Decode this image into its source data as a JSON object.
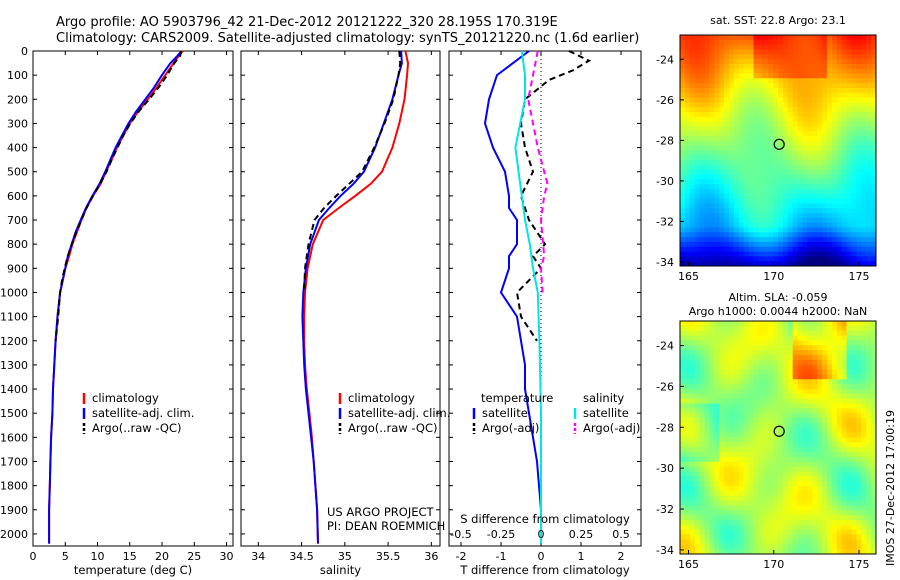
{
  "header": {
    "line1": "Argo profile: AO 5903796_42 21-Dec-2012 20121222_320 28.195S 170.319E",
    "line2": "Climatology: CARS2009. Satellite-adjusted climatology: synTS_20121220.nc (1.6d earlier)"
  },
  "side_note": "IMOS 27-Dec-2012 17:00:19",
  "credit": [
    "US ARGO PROJECT",
    "PI: DEAN ROEMMICH"
  ],
  "colors": {
    "climatology": "#ff0000",
    "satellite": "#0000ff",
    "argo": "#000000",
    "t_sat": "#0000ff",
    "s_sat": "#00e5e5",
    "s_argo": "#ff00ff"
  },
  "chart_data": [
    {
      "type": "line",
      "id": "temperature",
      "xlabel": "temperature (deg C)",
      "xlim": [
        0,
        31
      ],
      "ylim": [
        2050,
        0
      ],
      "xticks": [
        0,
        5,
        10,
        15,
        20,
        25,
        30
      ],
      "yticks": [
        0,
        100,
        200,
        300,
        400,
        500,
        600,
        700,
        800,
        900,
        1000,
        1100,
        1200,
        1300,
        1400,
        1500,
        1600,
        1700,
        1800,
        1900,
        2000
      ],
      "legend": [
        "climatology",
        "satellite-adj. clim.",
        "Argo(..raw -QC)"
      ],
      "series": [
        {
          "name": "climatology",
          "color": "#ff0000",
          "dash": "",
          "x": [
            23.2,
            22.6,
            21.8,
            20.5,
            19.2,
            17.8,
            16.3,
            15.0,
            14.0,
            13.0,
            12.2,
            11.3,
            10.5,
            9.3,
            8.3,
            7.5,
            6.8,
            6.1,
            5.6,
            5.0,
            4.6,
            4.2,
            3.8,
            3.5,
            3.3,
            3.1,
            3.0,
            2.8,
            2.7,
            2.6,
            2.5,
            2.5
          ],
          "y": [
            0,
            20,
            50,
            100,
            150,
            200,
            250,
            300,
            350,
            400,
            450,
            500,
            550,
            600,
            650,
            700,
            750,
            800,
            850,
            900,
            950,
            1000,
            1100,
            1200,
            1300,
            1400,
            1500,
            1600,
            1700,
            1800,
            1900,
            2040
          ]
        },
        {
          "name": "satellite-adj. clim.",
          "color": "#0000ff",
          "dash": "",
          "x": [
            23.0,
            22.4,
            21.3,
            20.0,
            18.8,
            17.4,
            16.0,
            14.8,
            13.8,
            12.8,
            12.0,
            11.2,
            10.3,
            9.2,
            8.2,
            7.4,
            6.6,
            6.0,
            5.4,
            5.0,
            4.6,
            4.2,
            3.8,
            3.5,
            3.3,
            3.1,
            3.0,
            2.8,
            2.7,
            2.6,
            2.5,
            2.5
          ],
          "y": [
            0,
            20,
            50,
            100,
            150,
            200,
            250,
            300,
            350,
            400,
            450,
            500,
            550,
            600,
            650,
            700,
            750,
            800,
            850,
            900,
            950,
            1000,
            1100,
            1200,
            1300,
            1400,
            1500,
            1600,
            1700,
            1800,
            1900,
            2040
          ]
        },
        {
          "name": "Argo(..raw -QC)",
          "color": "#000000",
          "dash": "6,4",
          "x": [
            23.0,
            22.8,
            21.9,
            20.8,
            19.5,
            18.0,
            16.4,
            15.1,
            14.0,
            13.1,
            12.2,
            11.4,
            10.4,
            9.3,
            8.3,
            7.5,
            6.7,
            6.0,
            5.4,
            4.9,
            4.5,
            4.2,
            3.9,
            3.5
          ],
          "y": [
            0,
            20,
            50,
            100,
            150,
            200,
            250,
            300,
            350,
            400,
            450,
            500,
            550,
            600,
            650,
            700,
            750,
            800,
            850,
            900,
            950,
            1000,
            1100,
            1200
          ]
        }
      ]
    },
    {
      "type": "line",
      "id": "salinity",
      "xlabel": "salinity",
      "xlim": [
        33.8,
        36.1
      ],
      "ylim": [
        2050,
        0
      ],
      "xticks": [
        34,
        34.5,
        35,
        35.5,
        36
      ],
      "legend": [
        "climatology",
        "satellite-adj. clim.",
        "Argo(..raw -QC)"
      ],
      "series": [
        {
          "name": "climatology",
          "color": "#ff0000",
          "dash": "",
          "x": [
            35.7,
            35.73,
            35.72,
            35.69,
            35.63,
            35.55,
            35.43,
            35.3,
            35.12,
            34.93,
            34.75,
            34.63,
            34.57,
            34.54,
            34.53,
            34.53,
            34.54,
            34.56,
            34.59,
            34.62,
            34.64,
            34.66,
            34.68,
            34.69
          ],
          "y": [
            0,
            50,
            100,
            200,
            300,
            400,
            500,
            550,
            600,
            650,
            700,
            800,
            900,
            1000,
            1100,
            1200,
            1300,
            1400,
            1500,
            1600,
            1700,
            1800,
            1900,
            2040
          ]
        },
        {
          "name": "satellite-adj. clim.",
          "color": "#0000ff",
          "dash": "",
          "x": [
            35.65,
            35.66,
            35.62,
            35.55,
            35.45,
            35.35,
            35.22,
            35.1,
            34.95,
            34.82,
            34.7,
            34.6,
            34.55,
            34.52,
            34.51,
            34.52,
            34.53,
            34.55,
            34.58,
            34.61,
            34.64,
            34.66,
            34.68,
            34.69
          ],
          "y": [
            0,
            50,
            100,
            200,
            300,
            400,
            500,
            550,
            600,
            650,
            700,
            800,
            900,
            1000,
            1100,
            1200,
            1300,
            1400,
            1500,
            1600,
            1700,
            1800,
            1900,
            2040
          ]
        },
        {
          "name": "Argo(..raw -QC)",
          "color": "#000000",
          "dash": "6,4",
          "x": [
            35.63,
            35.64,
            35.62,
            35.56,
            35.46,
            35.34,
            35.2,
            35.05,
            34.9,
            34.76,
            34.65,
            34.58,
            34.54,
            34.53
          ],
          "y": [
            0,
            50,
            100,
            200,
            300,
            400,
            500,
            550,
            600,
            650,
            700,
            800,
            900,
            1000
          ]
        }
      ]
    },
    {
      "type": "line",
      "id": "difference",
      "xlabel": "T difference from climatology",
      "xlabel2": "S difference from climatology",
      "xlim": [
        -2.3,
        2.5
      ],
      "ylim": [
        2050,
        0
      ],
      "xticks": [
        -2,
        -1,
        0,
        1,
        2
      ],
      "s_ticks": [
        "-0.5",
        "-0.25",
        "0",
        "0.25",
        "0.5"
      ],
      "legend": {
        "temperature_header": "temperature",
        "salinity_header": "salinity",
        "t_sat": "satellite",
        "t_argo": "Argo(-adj)",
        "s_sat": "satellite",
        "s_argo": "Argo(-adj)"
      },
      "series": [
        {
          "name": "T satellite",
          "color": "#0000ff",
          "dash": "",
          "x": [
            -0.3,
            -0.7,
            -1.1,
            -1.3,
            -1.4,
            -1.2,
            -0.9,
            -0.8,
            -0.8,
            -0.6,
            -0.6,
            -0.8,
            -0.8,
            -1.0,
            -0.6,
            -0.5,
            -0.4,
            -0.4,
            -0.3,
            -0.2,
            -0.1,
            -0.05,
            0,
            0
          ],
          "y": [
            0,
            50,
            100,
            200,
            300,
            400,
            500,
            600,
            650,
            700,
            800,
            850,
            900,
            1000,
            1100,
            1200,
            1300,
            1400,
            1500,
            1600,
            1700,
            1800,
            1900,
            2040
          ]
        },
        {
          "name": "T Argo(-adj)",
          "color": "#000000",
          "dash": "6,4",
          "x": [
            0.7,
            1.2,
            0.8,
            0.2,
            -0.4,
            -0.5,
            -0.4,
            -0.2,
            -0.5,
            -0.3,
            0.1,
            -0.2,
            0.0,
            -0.6,
            -0.5,
            -0.3,
            -0.1
          ],
          "y": [
            0,
            40,
            80,
            120,
            200,
            300,
            400,
            500,
            600,
            700,
            800,
            850,
            900,
            1000,
            1100,
            1150,
            1200
          ]
        },
        {
          "name": "S satellite",
          "color": "#00e5e5",
          "dash": "",
          "x": [
            -0.12,
            -0.1,
            -0.1,
            -0.13,
            -0.16,
            -0.14,
            -0.12,
            -0.1,
            -0.07,
            -0.05,
            -0.02,
            -0.01,
            0,
            0
          ],
          "y": [
            0,
            100,
            200,
            300,
            400,
            500,
            600,
            700,
            800,
            900,
            1000,
            1200,
            1500,
            2040
          ]
        },
        {
          "name": "S Argo(-adj)",
          "color": "#ff00ff",
          "dash": "6,4",
          "x": [
            -0.02,
            -0.05,
            -0.08,
            -0.05,
            -0.02,
            0.02,
            0.04,
            0.02,
            0.0,
            0.02,
            0.0,
            0.01
          ],
          "y": [
            0,
            100,
            200,
            300,
            400,
            500,
            550,
            600,
            700,
            850,
            900,
            1000
          ]
        }
      ]
    },
    {
      "type": "heatmap",
      "id": "sst_map",
      "title": "sat. SST: 22.8 Argo: 23.1",
      "xlim": [
        164.5,
        176
      ],
      "ylim": [
        -34.2,
        -22.8
      ],
      "xticks": [
        165,
        170,
        175
      ],
      "yticks": [
        -24,
        -26,
        -28,
        -30,
        -32,
        -34
      ],
      "marker": {
        "lon": 170.319,
        "lat": -28.195
      }
    },
    {
      "type": "heatmap",
      "id": "sla_map",
      "title_line1": "Altim. SLA: -0.059",
      "title_line2": "Argo h1000: 0.0044 h2000: NaN",
      "xlim": [
        164.5,
        176
      ],
      "ylim": [
        -34.2,
        -22.8
      ],
      "xticks": [
        165,
        170,
        175
      ],
      "yticks": [
        -24,
        -26,
        -28,
        -30,
        -32,
        -34
      ],
      "marker": {
        "lon": 170.319,
        "lat": -28.195
      }
    }
  ]
}
